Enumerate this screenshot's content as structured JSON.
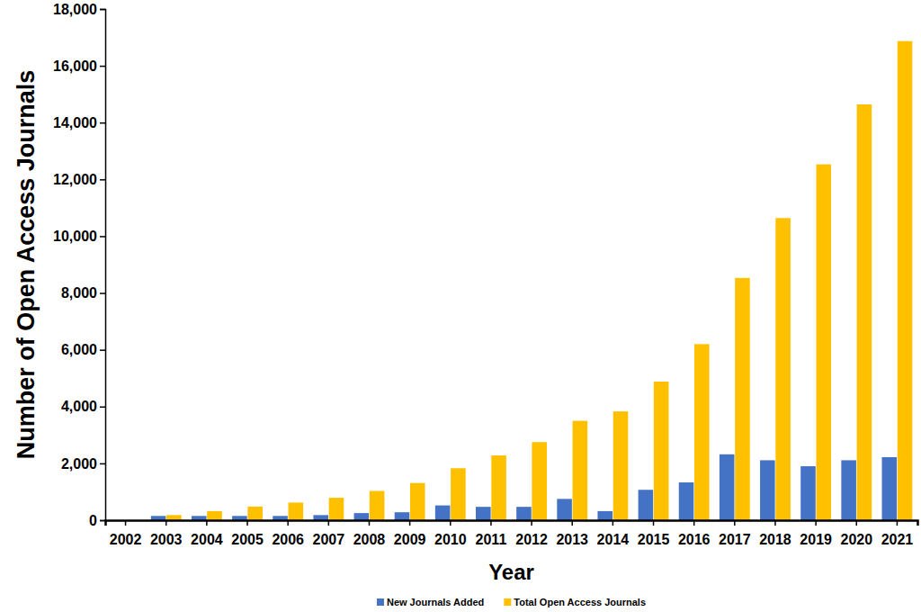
{
  "chart_data": {
    "type": "bar",
    "x_label": "Year",
    "y_label": "Number of Open Access Journals",
    "categories": [
      "2002",
      "2003",
      "2004",
      "2005",
      "2006",
      "2007",
      "2008",
      "2009",
      "2010",
      "2011",
      "2012",
      "2013",
      "2014",
      "2015",
      "2016",
      "2017",
      "2018",
      "2019",
      "2020",
      "2021"
    ],
    "series": [
      {
        "name": "New Journals Added",
        "color": "#4472c4",
        "values": [
          0,
          150,
          150,
          150,
          150,
          180,
          250,
          280,
          520,
          470,
          470,
          750,
          320,
          1070,
          1330,
          2320,
          2110,
          1900,
          2110,
          2220
        ]
      },
      {
        "name": "Total Open Access Journals",
        "color": "#ffc000",
        "values": [
          0,
          180,
          320,
          480,
          620,
          790,
          1030,
          1310,
          1830,
          2280,
          2750,
          3500,
          3830,
          4880,
          6200,
          8530,
          10640,
          12530,
          14640,
          16870
        ]
      }
    ],
    "ylim": [
      0,
      18000
    ],
    "yticks": [
      0,
      {
        "value": 2000,
        "label": "2,000"
      },
      {
        "value": 4000,
        "label": "4,000"
      },
      {
        "value": 6000,
        "label": "6,000"
      },
      {
        "value": 8000,
        "label": "8,000"
      },
      {
        "value": 10000,
        "label": "10,000"
      },
      {
        "value": 12000,
        "label": "12,000"
      },
      {
        "value": 14000,
        "label": "14,000"
      },
      {
        "value": 16000,
        "label": "16,000"
      },
      {
        "value": 18000,
        "label": "18,000"
      }
    ],
    "grid": false,
    "legend": "bottom"
  }
}
